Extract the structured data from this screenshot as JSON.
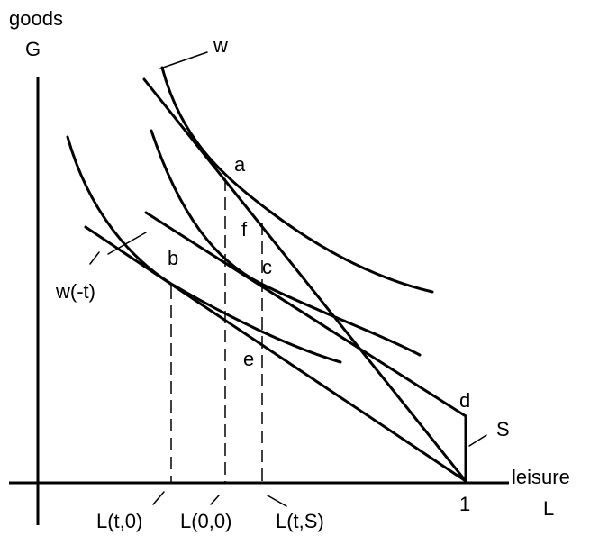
{
  "axes": {
    "y_label_top": "goods",
    "y_label_bottom": "G",
    "x_label_top": "leisure",
    "x_label_bottom": "L",
    "x_tick_one": "1"
  },
  "curve_labels": {
    "w": "w",
    "w_minus_t": "w(-t)",
    "S": "S"
  },
  "points": {
    "a": "a",
    "b": "b",
    "c": "c",
    "d": "d",
    "e": "e",
    "f": "f"
  },
  "leisure_levels": {
    "L_t_0": "L(t,0)",
    "L_0_0": "L(0,0)",
    "L_t_S": "L(t,S)"
  }
}
